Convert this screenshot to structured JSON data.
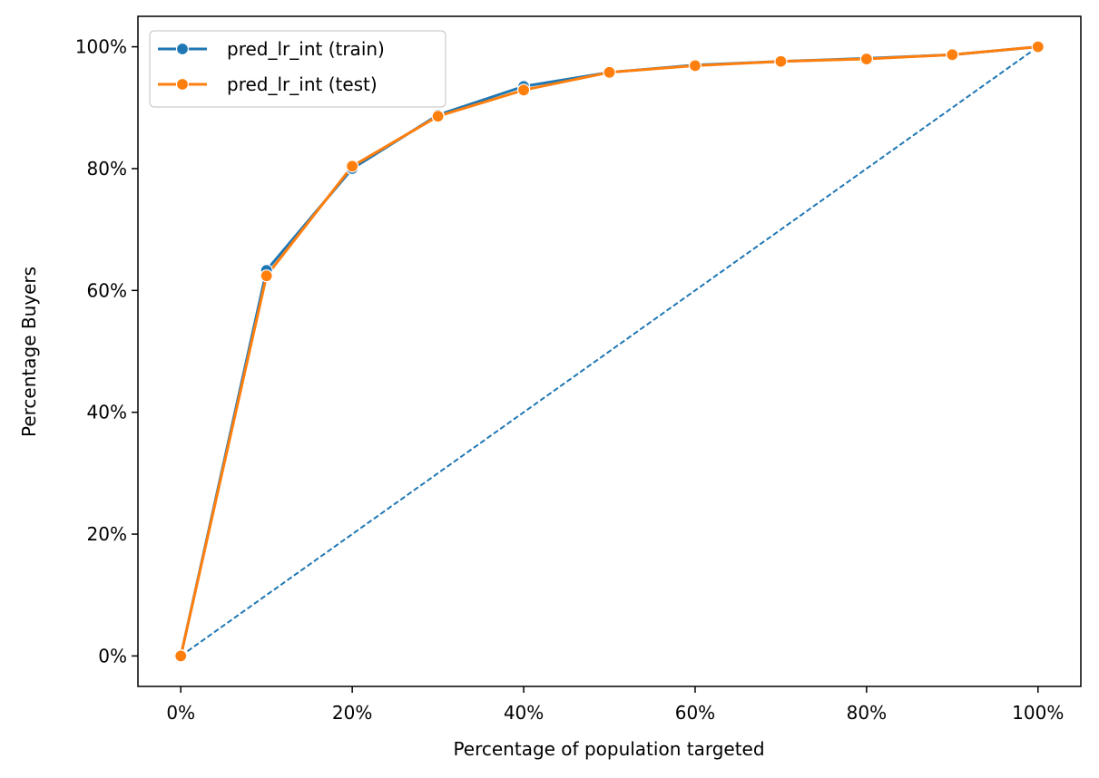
{
  "chart_data": {
    "type": "line",
    "title": "",
    "xlabel": "Percentage of population targeted",
    "ylabel": "Percentage Buyers",
    "xlim": [
      -5,
      105
    ],
    "ylim": [
      -5,
      105
    ],
    "x_ticks": [
      0,
      20,
      40,
      60,
      80,
      100
    ],
    "x_tick_labels": [
      "0%",
      "20%",
      "40%",
      "60%",
      "80%",
      "100%"
    ],
    "y_ticks": [
      0,
      20,
      40,
      60,
      80,
      100
    ],
    "y_tick_labels": [
      "0%",
      "20%",
      "40%",
      "60%",
      "80%",
      "100%"
    ],
    "grid": false,
    "legend_position": "top-left",
    "x": [
      0,
      10,
      20,
      30,
      40,
      50,
      60,
      70,
      80,
      90,
      100
    ],
    "series": [
      {
        "name": "pred_lr_int (train)",
        "color": "#1f77b4",
        "values": [
          0,
          63.3,
          80.0,
          88.8,
          93.5,
          95.8,
          97.0,
          97.6,
          98.1,
          98.7,
          100
        ]
      },
      {
        "name": "pred_lr_int (test)",
        "color": "#ff7f0e",
        "values": [
          0,
          62.4,
          80.4,
          88.6,
          92.9,
          95.8,
          96.9,
          97.6,
          98.0,
          98.7,
          100
        ]
      }
    ],
    "reference_line": {
      "style": "dashed",
      "color": "#1f77b4",
      "x": [
        0,
        100
      ],
      "y": [
        0,
        100
      ]
    }
  }
}
